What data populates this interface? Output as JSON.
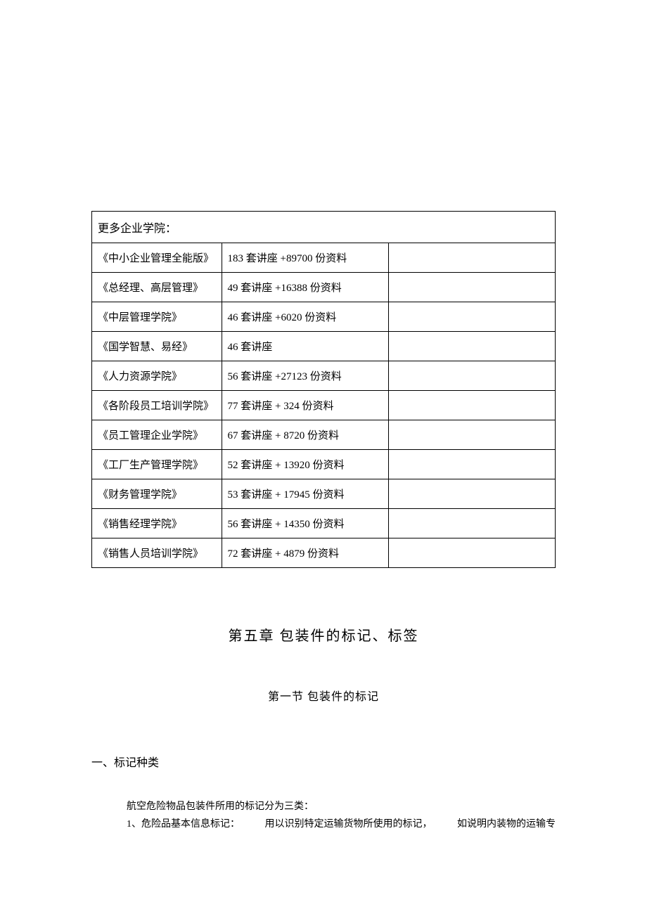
{
  "table": {
    "header": "更多企业学院：",
    "rows": [
      {
        "name": "《中小企业管理全能版》",
        "desc": "183 套讲座 +89700 份资料"
      },
      {
        "name": "《总经理、高层管理》",
        "desc": "49 套讲座 +16388 份资料"
      },
      {
        "name": "《中层管理学院》",
        "desc": "46 套讲座 +6020 份资料"
      },
      {
        "name": "《国学智慧、易经》",
        "desc": "46 套讲座"
      },
      {
        "name": "《人力资源学院》",
        "desc": "56 套讲座 +27123 份资料"
      },
      {
        "name": "《各阶段员工培训学院》",
        "desc": "77 套讲座 + 324 份资料"
      },
      {
        "name": "《员工管理企业学院》",
        "desc": "67 套讲座 + 8720 份资料"
      },
      {
        "name": "《工厂生产管理学院》",
        "desc": "52 套讲座 + 13920 份资料"
      },
      {
        "name": "《财务管理学院》",
        "desc": "53 套讲座 + 17945 份资料"
      },
      {
        "name": "《销售经理学院》",
        "desc": "56 套讲座 + 14350 份资料"
      },
      {
        "name": "《销售人员培训学院》",
        "desc": "72 套讲座 + 4879 份资料"
      }
    ]
  },
  "chapter": {
    "title": "第五章   包装件的标记、标签",
    "section": "第一节  包装件的标记"
  },
  "content": {
    "heading": "一、标记种类",
    "p1": "航空危险物品包装件所用的标记分为三类：",
    "p2_a": "1、危险品基本信息标记：",
    "p2_b": "用以识别特定运输货物所使用的标记，",
    "p2_c": "如说明内装物的运输专"
  },
  "style": {
    "background": "#ffffff",
    "border_color": "#000000",
    "text_color": "#000000",
    "font_family": "SimSun",
    "table_font_size": 15,
    "chapter_font_size": 20,
    "section_font_size": 16,
    "body_font_size": 14
  }
}
